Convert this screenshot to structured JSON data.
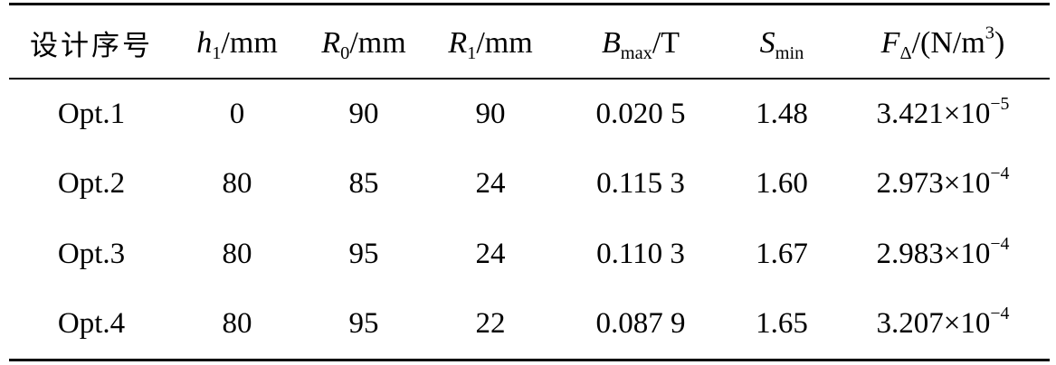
{
  "table": {
    "headers": {
      "design_no": "设计序号",
      "h1": {
        "var": "h",
        "sub": "1",
        "unit": "/mm"
      },
      "r0": {
        "var": "R",
        "sub": "0",
        "unit": "/mm"
      },
      "r1": {
        "var": "R",
        "sub": "1",
        "unit": "/mm"
      },
      "bmax": {
        "var": "B",
        "sub": "max",
        "unit": "/T"
      },
      "smin": {
        "var": "S",
        "sub": "min",
        "unit": ""
      },
      "fdelta": {
        "var": "F",
        "sub": "Δ",
        "unit_pre": "/(N/m",
        "unit_sup": "3",
        "unit_post": ")"
      }
    },
    "rows": [
      {
        "name": "Opt.1",
        "h1": "0",
        "r0": "90",
        "r1": "90",
        "bmax": "0.020 5",
        "smin": "1.48",
        "f_mantissa": "3.421",
        "f_times": "×",
        "f_base": "10",
        "f_exp": "−5"
      },
      {
        "name": "Opt.2",
        "h1": "80",
        "r0": "85",
        "r1": "24",
        "bmax": "0.115 3",
        "smin": "1.60",
        "f_mantissa": "2.973",
        "f_times": "×",
        "f_base": "10",
        "f_exp": "−4"
      },
      {
        "name": "Opt.3",
        "h1": "80",
        "r0": "95",
        "r1": "24",
        "bmax": "0.110 3",
        "smin": "1.67",
        "f_mantissa": "2.983",
        "f_times": "×",
        "f_base": "10",
        "f_exp": "−4"
      },
      {
        "name": "Opt.4",
        "h1": "80",
        "r0": "95",
        "r1": "22",
        "bmax": "0.087 9",
        "smin": "1.65",
        "f_mantissa": "3.207",
        "f_times": "×",
        "f_base": "10",
        "f_exp": "−4"
      }
    ]
  }
}
